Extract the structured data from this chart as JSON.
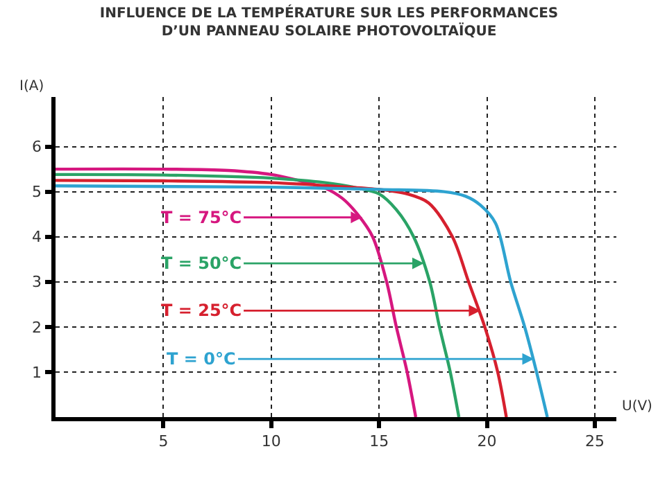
{
  "chart_data": {
    "type": "line",
    "title": "INFLUENCE DE LA TEMPÉRATURE SUR LES PERFORMANCES\nD’UN PANNEAU SOLAIRE PHOTOVOLTAÏQUE",
    "xlabel": "U(V)",
    "ylabel": "I(A)",
    "xlim": [
      0,
      26
    ],
    "ylim": [
      0,
      7.1
    ],
    "xticks": [
      5,
      10,
      15,
      20,
      25
    ],
    "yticks": [
      1,
      2,
      3,
      4,
      5,
      6
    ],
    "grid": true,
    "line_style": "solid",
    "series": [
      {
        "color": "#d6177f",
        "x": [
          0,
          5,
          8,
          10,
          11.5,
          12.5,
          13.3,
          14,
          14.7,
          15.35,
          15.8,
          16.3,
          16.7
        ],
        "values": [
          5.5,
          5.5,
          5.47,
          5.38,
          5.22,
          5.08,
          4.85,
          4.5,
          4,
          3,
          2,
          1,
          0
        ]
      },
      {
        "color": "#2aa366",
        "x": [
          0,
          5,
          10,
          12.5,
          14,
          15,
          15.8,
          16.6,
          17.35,
          17.8,
          18.3,
          18.7
        ],
        "values": [
          5.38,
          5.37,
          5.3,
          5.2,
          5.08,
          4.95,
          4.6,
          4,
          3,
          2,
          1,
          0
        ]
      },
      {
        "color": "#d6202e",
        "x": [
          0,
          5,
          10,
          13,
          15,
          16.3,
          17.3,
          18.4,
          19.15,
          19.9,
          20.5,
          20.9
        ],
        "values": [
          5.25,
          5.24,
          5.2,
          5.12,
          5.05,
          4.95,
          4.75,
          4,
          3,
          2,
          1,
          0
        ]
      },
      {
        "color": "#2ea3d0",
        "x": [
          0,
          10,
          15,
          18,
          19,
          19.7,
          20.4,
          21.1,
          21.75,
          22.3,
          22.8
        ],
        "values": [
          5.13,
          5.1,
          5.05,
          5.0,
          4.9,
          4.7,
          4.3,
          3,
          2,
          1,
          0
        ]
      }
    ],
    "annotations": [
      {
        "text": "T = 75°C",
        "x": 14.23,
        "y": 4.43
      },
      {
        "text": "T = 50°C",
        "x": 17.08,
        "y": 3.41
      },
      {
        "text": "T = 25°C",
        "x": 19.7,
        "y": 2.36
      },
      {
        "text": "T = 0°C",
        "x": 22.18,
        "y": 1.29
      }
    ]
  }
}
